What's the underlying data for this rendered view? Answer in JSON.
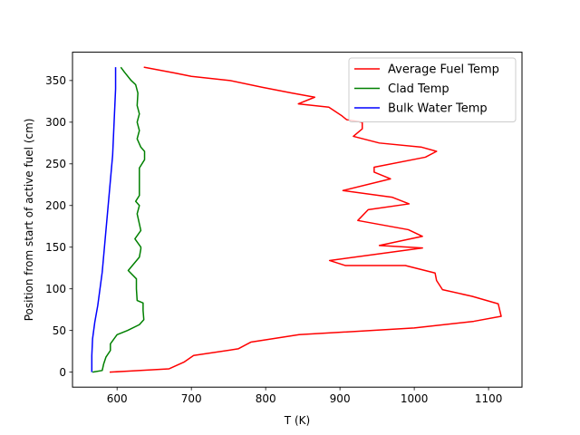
{
  "chart_data": {
    "type": "line",
    "title": "",
    "xlabel": "T (K)",
    "ylabel": "Position from start of active fuel (cm)",
    "xlim": [
      540,
      1145
    ],
    "ylim": [
      -18,
      384
    ],
    "xticks": [
      600,
      700,
      800,
      900,
      1000,
      1100
    ],
    "yticks": [
      0,
      50,
      100,
      150,
      200,
      250,
      300,
      350
    ],
    "grid": false,
    "legend_position": "top-right",
    "series": [
      {
        "name": "Average Fuel Temp",
        "color": "#ff0000",
        "points": [
          [
            590,
            0
          ],
          [
            610,
            1
          ],
          [
            670,
            4
          ],
          [
            690,
            12
          ],
          [
            703,
            20
          ],
          [
            763,
            28
          ],
          [
            780,
            36
          ],
          [
            845,
            45
          ],
          [
            1000,
            53
          ],
          [
            1080,
            61
          ],
          [
            1117,
            67
          ],
          [
            1113,
            82
          ],
          [
            1078,
            91
          ],
          [
            1038,
            99
          ],
          [
            1030,
            110
          ],
          [
            1028,
            119
          ],
          [
            988,
            128
          ],
          [
            907,
            128
          ],
          [
            886,
            134
          ],
          [
            1011,
            149
          ],
          [
            953,
            152
          ],
          [
            1011,
            163
          ],
          [
            992,
            171
          ],
          [
            924,
            182
          ],
          [
            938,
            195
          ],
          [
            993,
            202
          ],
          [
            970,
            210
          ],
          [
            904,
            218
          ],
          [
            968,
            232
          ],
          [
            946,
            240
          ],
          [
            946,
            246
          ],
          [
            1015,
            258
          ],
          [
            1030,
            265
          ],
          [
            1010,
            270
          ],
          [
            953,
            275
          ],
          [
            918,
            283
          ],
          [
            930,
            292
          ],
          [
            930,
            300
          ],
          [
            909,
            303
          ],
          [
            902,
            308
          ],
          [
            885,
            318
          ],
          [
            844,
            322
          ],
          [
            866,
            330
          ],
          [
            835,
            335
          ],
          [
            795,
            342
          ],
          [
            752,
            350
          ],
          [
            700,
            355
          ],
          [
            678,
            359
          ],
          [
            636,
            366
          ]
        ]
      },
      {
        "name": "Clad Temp",
        "color": "#008000",
        "points": [
          [
            567,
            0
          ],
          [
            580,
            2
          ],
          [
            582,
            10
          ],
          [
            585,
            18
          ],
          [
            591,
            26
          ],
          [
            591,
            34
          ],
          [
            600,
            45
          ],
          [
            614,
            50
          ],
          [
            630,
            57
          ],
          [
            636,
            63
          ],
          [
            635,
            74
          ],
          [
            635,
            83
          ],
          [
            627,
            86
          ],
          [
            626,
            100
          ],
          [
            626,
            112
          ],
          [
            615,
            122
          ],
          [
            630,
            138
          ],
          [
            632,
            148
          ],
          [
            632,
            150
          ],
          [
            624,
            160
          ],
          [
            632,
            170
          ],
          [
            630,
            178
          ],
          [
            627,
            190
          ],
          [
            630,
            200
          ],
          [
            625,
            205
          ],
          [
            630,
            212
          ],
          [
            630,
            232
          ],
          [
            630,
            245
          ],
          [
            637,
            255
          ],
          [
            637,
            265
          ],
          [
            632,
            270
          ],
          [
            627,
            280
          ],
          [
            630,
            290
          ],
          [
            627,
            300
          ],
          [
            630,
            310
          ],
          [
            627,
            320
          ],
          [
            628,
            335
          ],
          [
            625,
            345
          ],
          [
            619,
            350
          ],
          [
            610,
            360
          ],
          [
            605,
            366
          ]
        ]
      },
      {
        "name": "Bulk Water Temp",
        "color": "#0000ff",
        "points": [
          [
            566,
            0
          ],
          [
            566,
            20
          ],
          [
            567,
            40
          ],
          [
            570,
            60
          ],
          [
            574,
            80
          ],
          [
            577,
            100
          ],
          [
            580,
            120
          ],
          [
            582,
            140
          ],
          [
            584,
            160
          ],
          [
            586,
            180
          ],
          [
            588,
            200
          ],
          [
            590,
            220
          ],
          [
            592,
            240
          ],
          [
            594,
            260
          ],
          [
            595,
            280
          ],
          [
            596,
            300
          ],
          [
            597,
            320
          ],
          [
            598,
            340
          ],
          [
            598,
            366
          ]
        ]
      }
    ]
  }
}
